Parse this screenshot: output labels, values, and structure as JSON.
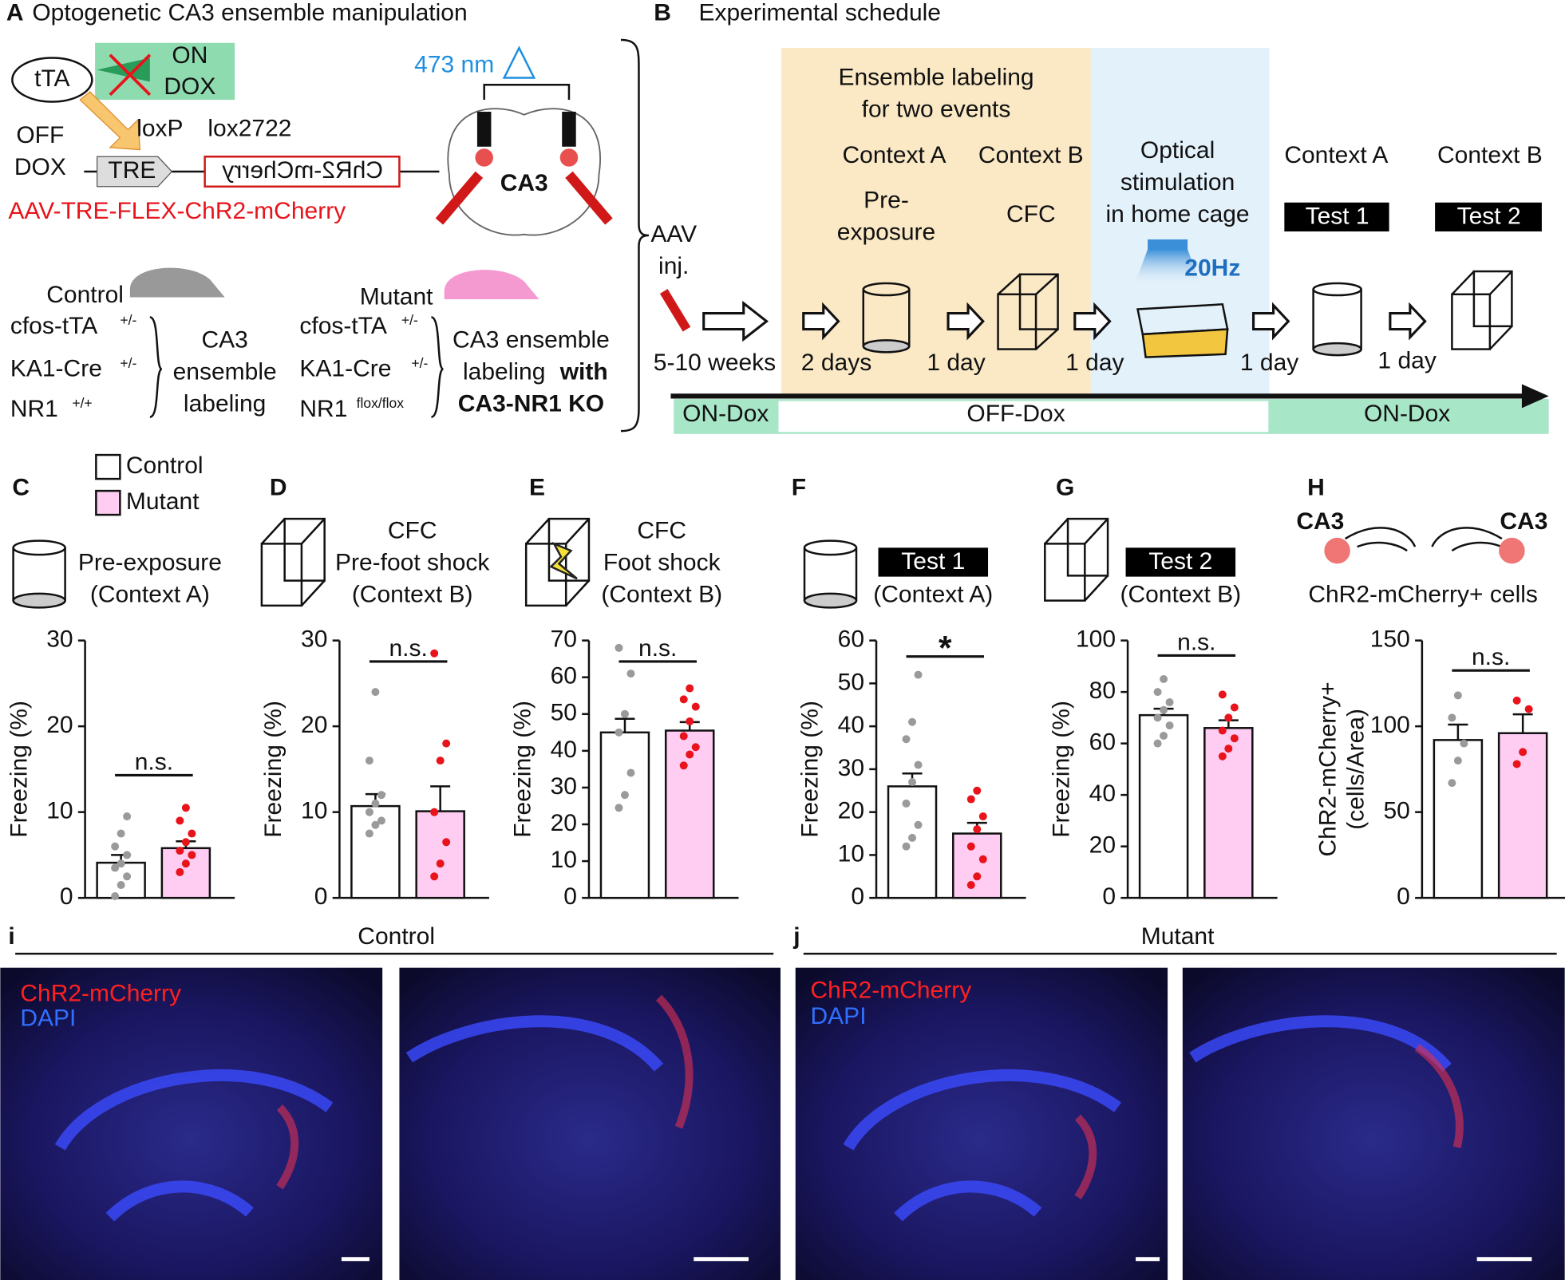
{
  "panel_a": {
    "label": "A",
    "title": "Optogenetic CA3 ensemble manipulation",
    "tta": "tTA",
    "on": "ON",
    "on_dox": "DOX",
    "off": "OFF",
    "off_dox": "DOX",
    "tre": "TRE",
    "loxp": "loxP",
    "lox2722": "lox2722",
    "construct": "ChR2-mCherry",
    "virus": "AAV-TRE-FLEX-ChR2-mCherry",
    "laser": "473 nm",
    "region": "CA3",
    "control": {
      "name": "Control",
      "gene1": "cfos-tTA",
      "gene1_sup": "+/-",
      "gene2": "KA1-Cre",
      "gene2_sup": "+/-",
      "gene3": "NR1",
      "gene3_sup": "+/+",
      "desc": [
        "CA3",
        "ensemble",
        "labeling"
      ]
    },
    "mutant": {
      "name": "Mutant",
      "gene1": "cfos-tTA",
      "gene1_sup": "+/-",
      "gene2": "KA1-Cre",
      "gene2_sup": "+/-",
      "gene3": "NR1",
      "gene3_sup": "flox/flox",
      "desc": [
        "CA3 ensemble",
        "labeling",
        "with",
        "CA3-NR1 KO"
      ]
    }
  },
  "panel_b": {
    "label": "B",
    "title": "Experimental schedule",
    "labeling": [
      "Ensemble labeling",
      "for two events"
    ],
    "ctx1": "Context A",
    "ctx2": "Context B",
    "pre": [
      "Pre-",
      "exposure"
    ],
    "cfc": "CFC",
    "optical": [
      "Optical",
      "stimulation",
      "in home cage"
    ],
    "freq": "20Hz",
    "ctx3": "Context A",
    "ctx4": "Context B",
    "test1": "Test 1",
    "test2": "Test 2",
    "aav": [
      "AAV",
      "inj."
    ],
    "intervals": [
      "5-10 weeks",
      "2 days",
      "1 day",
      "1 day",
      "1 day",
      "1 day"
    ],
    "dox": [
      "ON-Dox",
      "OFF-Dox",
      "ON-Dox"
    ]
  },
  "legend": [
    {
      "name": "Control",
      "color": "#ffffff",
      "point_color": "#9a9a9a"
    },
    {
      "name": "Mutant",
      "color": "#ffccf2",
      "point_color": "#e8131b"
    }
  ],
  "chart_data": [
    {
      "type": "bar",
      "label": "C",
      "title": [
        "Pre-exposure",
        "(Context A)"
      ],
      "ylabel": [
        "Freezing (%)"
      ],
      "ylim": [
        0,
        30
      ],
      "yticks": [
        0,
        10,
        20,
        30
      ],
      "values": [
        4.1,
        5.8
      ],
      "errors": [
        0.9,
        0.8
      ],
      "points": [
        [
          0.2,
          1.5,
          2.5,
          3.5,
          4,
          5,
          6,
          7.5,
          9.5
        ],
        [
          3,
          4,
          5,
          5.5,
          6.5,
          7.5,
          9,
          10.5
        ]
      ],
      "significance": "n.s."
    },
    {
      "type": "bar",
      "label": "D",
      "title": [
        "CFC",
        "Pre-foot shock",
        "(Context B)"
      ],
      "ylabel": [
        "Freezing (%)"
      ],
      "ylim": [
        0,
        30
      ],
      "yticks": [
        0,
        10,
        20,
        30
      ],
      "values": [
        10.7,
        10.1
      ],
      "errors": [
        1.4,
        2.9
      ],
      "points": [
        [
          7.5,
          8.5,
          9,
          10,
          11,
          12,
          16,
          24
        ],
        [
          2.5,
          4,
          6.5,
          10,
          16,
          18,
          28.5
        ]
      ],
      "significance": "n.s."
    },
    {
      "type": "bar",
      "label": "E",
      "title": [
        "CFC",
        "Foot shock",
        "(Context B)"
      ],
      "ylabel": [
        "Freezing (%)"
      ],
      "ylim": [
        0,
        70
      ],
      "yticks": [
        0,
        10,
        20,
        30,
        40,
        50,
        60,
        70
      ],
      "values": [
        45,
        45.5
      ],
      "errors": [
        3.7,
        2.3
      ],
      "points": [
        [
          24.5,
          28,
          34,
          45,
          50,
          61,
          68
        ],
        [
          36,
          39,
          41,
          44,
          48,
          52,
          54,
          57
        ]
      ],
      "significance": "n.s."
    },
    {
      "type": "bar",
      "label": "F",
      "title_box": "Test 1",
      "title": [
        "(Context A)"
      ],
      "ylabel": [
        "Freezing (%)"
      ],
      "ylim": [
        0,
        60
      ],
      "yticks": [
        0,
        10,
        20,
        30,
        40,
        50,
        60
      ],
      "values": [
        26,
        15
      ],
      "errors": [
        3,
        2.5
      ],
      "points": [
        [
          12,
          14,
          17,
          22,
          27,
          31,
          37,
          41,
          52
        ],
        [
          3,
          5,
          9,
          12,
          16,
          19,
          23,
          25
        ]
      ],
      "significance": "*"
    },
    {
      "type": "bar",
      "label": "G",
      "title_box": "Test 2",
      "title": [
        "(Context B)"
      ],
      "ylabel": [
        "Freezing (%)"
      ],
      "ylim": [
        0,
        100
      ],
      "yticks": [
        0,
        20,
        40,
        60,
        80,
        100
      ],
      "values": [
        71,
        66
      ],
      "errors": [
        2.5,
        3
      ],
      "points": [
        [
          60,
          63,
          67,
          70,
          73,
          76,
          80,
          85
        ],
        [
          55,
          58,
          62,
          65,
          70,
          74,
          79
        ]
      ],
      "significance": "n.s."
    },
    {
      "type": "bar",
      "label": "H",
      "regions": [
        "CA3",
        "CA3"
      ],
      "title": [
        "ChR2-mCherry+ cells"
      ],
      "ylabel": [
        "ChR2-mCherry+",
        "(cells/Area)"
      ],
      "ylim": [
        0,
        150
      ],
      "yticks": [
        0,
        50,
        100,
        150
      ],
      "values": [
        92,
        96
      ],
      "errors": [
        9,
        11
      ],
      "points": [
        [
          67,
          80,
          90,
          105,
          118
        ],
        [
          78,
          85,
          110,
          115
        ]
      ],
      "significance": "n.s."
    }
  ],
  "images": {
    "left": {
      "label": "i",
      "title": "Control",
      "stain1": "ChR2-mCherry",
      "stain2": "DAPI"
    },
    "right": {
      "label": "j",
      "title": "Mutant",
      "stain1": "ChR2-mCherry",
      "stain2": "DAPI"
    }
  }
}
